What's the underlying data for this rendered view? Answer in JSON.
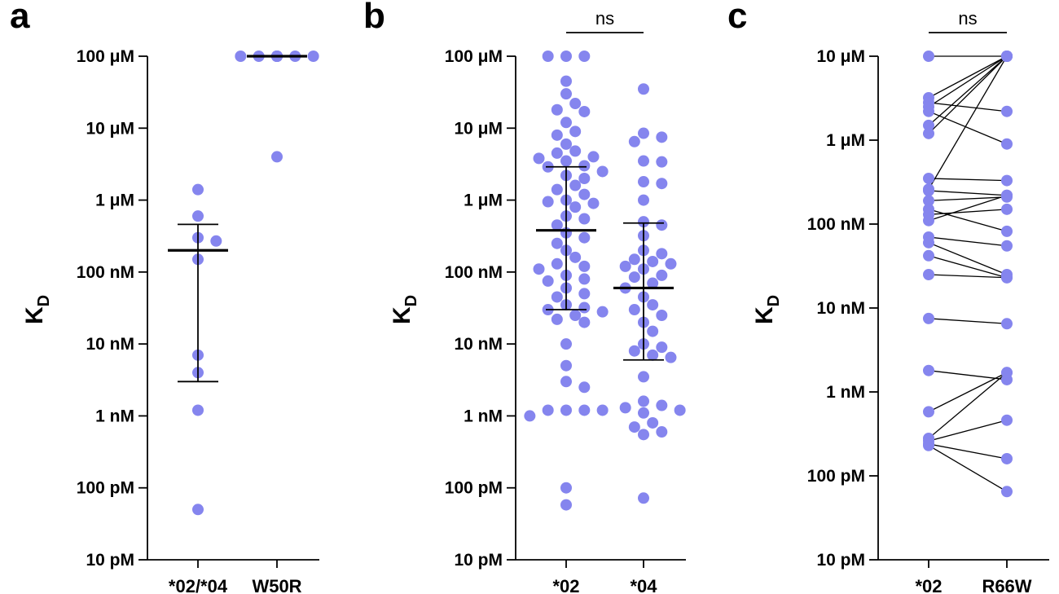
{
  "colors": {
    "point": "#8585ee",
    "axis": "#000000"
  },
  "chart_data": [
    {
      "panel": "a",
      "type": "scatter",
      "ylabel": "K",
      "ylabel_sub": "D",
      "yscale": "log",
      "ylim_molar": [
        1e-11,
        0.0001
      ],
      "ytick_labels": [
        "10 pM",
        "100 pM",
        "1 nM",
        "10 nM",
        "100 nM",
        "1 μM",
        "10 μM",
        "100 μM"
      ],
      "categories": [
        "*02/*04",
        "W50R"
      ],
      "significance": "",
      "groups": [
        {
          "name": "*02/*04",
          "values_molar": [
            1.4e-06,
            6e-07,
            3e-07,
            2.7e-07,
            1.5e-07,
            7e-09,
            4e-09,
            1.2e-09,
            5e-11
          ],
          "median_molar": 2e-07,
          "errbar_molar": [
            3e-09,
            4.6e-07
          ]
        },
        {
          "name": "W50R",
          "values_molar": [
            0.0001,
            0.0001,
            0.0001,
            0.0001,
            0.0001,
            0.0001,
            0.0001,
            0.0001,
            0.0001,
            0.0001,
            0.0001,
            0.0001,
            4e-06
          ],
          "median_molar": 0.0001,
          "errbar_molar": null
        }
      ]
    },
    {
      "panel": "b",
      "type": "scatter",
      "ylabel": "K",
      "ylabel_sub": "D",
      "yscale": "log",
      "ylim_molar": [
        1e-11,
        0.0001
      ],
      "ytick_labels": [
        "10 pM",
        "100 pM",
        "1 nM",
        "10 nM",
        "100 nM",
        "1 μM",
        "10 μM",
        "100 μM"
      ],
      "categories": [
        "*02",
        "*04"
      ],
      "significance": "ns",
      "groups": [
        {
          "name": "*02",
          "values_molar": [
            0.0001,
            0.0001,
            0.0001,
            4.5e-05,
            3e-05,
            2.2e-05,
            1.8e-05,
            1.7e-05,
            1.2e-05,
            9e-06,
            8e-06,
            6e-06,
            4.8e-06,
            4.5e-06,
            4e-06,
            3.8e-06,
            3.5e-06,
            3e-06,
            2.9e-06,
            2.5e-06,
            2.2e-06,
            2e-06,
            1.6e-06,
            1.4e-06,
            1.2e-06,
            1e-06,
            9.5e-07,
            9e-07,
            8e-07,
            6e-07,
            5.5e-07,
            4.5e-07,
            3.5e-07,
            3e-07,
            2.5e-07,
            2e-07,
            1.6e-07,
            1.3e-07,
            1.2e-07,
            1.1e-07,
            9e-08,
            8e-08,
            7.5e-08,
            6e-08,
            5e-08,
            4.5e-08,
            3.5e-08,
            3.2e-08,
            3e-08,
            2.8e-08,
            2.5e-08,
            2.2e-08,
            2e-08,
            1e-08,
            5e-09,
            3e-09,
            2.5e-09,
            1.2e-09,
            1.2e-09,
            1.2e-09,
            1.2e-09,
            1e-09,
            1e-10,
            5.8e-11
          ],
          "median_molar": 3.8e-07,
          "errbar_molar": [
            3e-08,
            2.9e-06
          ]
        },
        {
          "name": "*04",
          "values_molar": [
            3.5e-05,
            8.5e-06,
            7.5e-06,
            6.5e-06,
            3.5e-06,
            3.4e-06,
            1.8e-06,
            1.7e-06,
            1e-06,
            5e-07,
            4.5e-07,
            3.2e-07,
            2e-07,
            1.8e-07,
            1.5e-07,
            1.4e-07,
            1.3e-07,
            1.2e-07,
            1.1e-07,
            9e-08,
            8.5e-08,
            7e-08,
            6e-08,
            4.5e-08,
            3.5e-08,
            3e-08,
            2.5e-08,
            2e-08,
            1.5e-08,
            1e-08,
            9e-09,
            8e-09,
            7e-09,
            6.5e-09,
            3.5e-09,
            1.6e-09,
            1.4e-09,
            1.3e-09,
            1.2e-09,
            1.1e-09,
            8e-10,
            7e-10,
            6e-10,
            5.5e-10,
            7.2e-11
          ],
          "median_molar": 6e-08,
          "errbar_molar": [
            6e-09,
            4.8e-07
          ]
        }
      ]
    },
    {
      "panel": "c",
      "type": "paired-scatter",
      "ylabel": "K",
      "ylabel_sub": "D",
      "yscale": "log",
      "ylim_molar": [
        1e-11,
        1e-05
      ],
      "ytick_labels": [
        "10 pM",
        "100 pM",
        "1 nM",
        "10 nM",
        "100 nM",
        "1 μM",
        "10 μM"
      ],
      "categories": [
        "*02",
        "R66W"
      ],
      "significance": "ns",
      "pairs_molar": [
        [
          1e-05,
          1e-05
        ],
        [
          3.2e-06,
          1e-05
        ],
        [
          2.8e-06,
          2.2e-06
        ],
        [
          2.5e-06,
          1e-05
        ],
        [
          2.2e-06,
          9e-07
        ],
        [
          1.5e-06,
          1e-05
        ],
        [
          1.2e-06,
          1e-05
        ],
        [
          3.5e-07,
          3.3e-07
        ],
        [
          2.6e-07,
          1e-05
        ],
        [
          2.5e-07,
          2.2e-07
        ],
        [
          1.9e-07,
          2.1e-07
        ],
        [
          1.5e-07,
          8.2e-08
        ],
        [
          1.3e-07,
          1.5e-07
        ],
        [
          1.1e-07,
          2.2e-07
        ],
        [
          7e-08,
          5.5e-08
        ],
        [
          6e-08,
          2.5e-08
        ],
        [
          4.2e-08,
          2.3e-08
        ],
        [
          2.5e-08,
          2.3e-08
        ],
        [
          7.5e-09,
          6.5e-09
        ],
        [
          1.8e-09,
          1.4e-09
        ],
        [
          5.8e-10,
          1.7e-09
        ],
        [
          2.8e-10,
          1.7e-09
        ],
        [
          2.6e-10,
          4.6e-10
        ],
        [
          2.4e-10,
          1.6e-10
        ],
        [
          2.3e-10,
          6.5e-11
        ]
      ]
    }
  ]
}
